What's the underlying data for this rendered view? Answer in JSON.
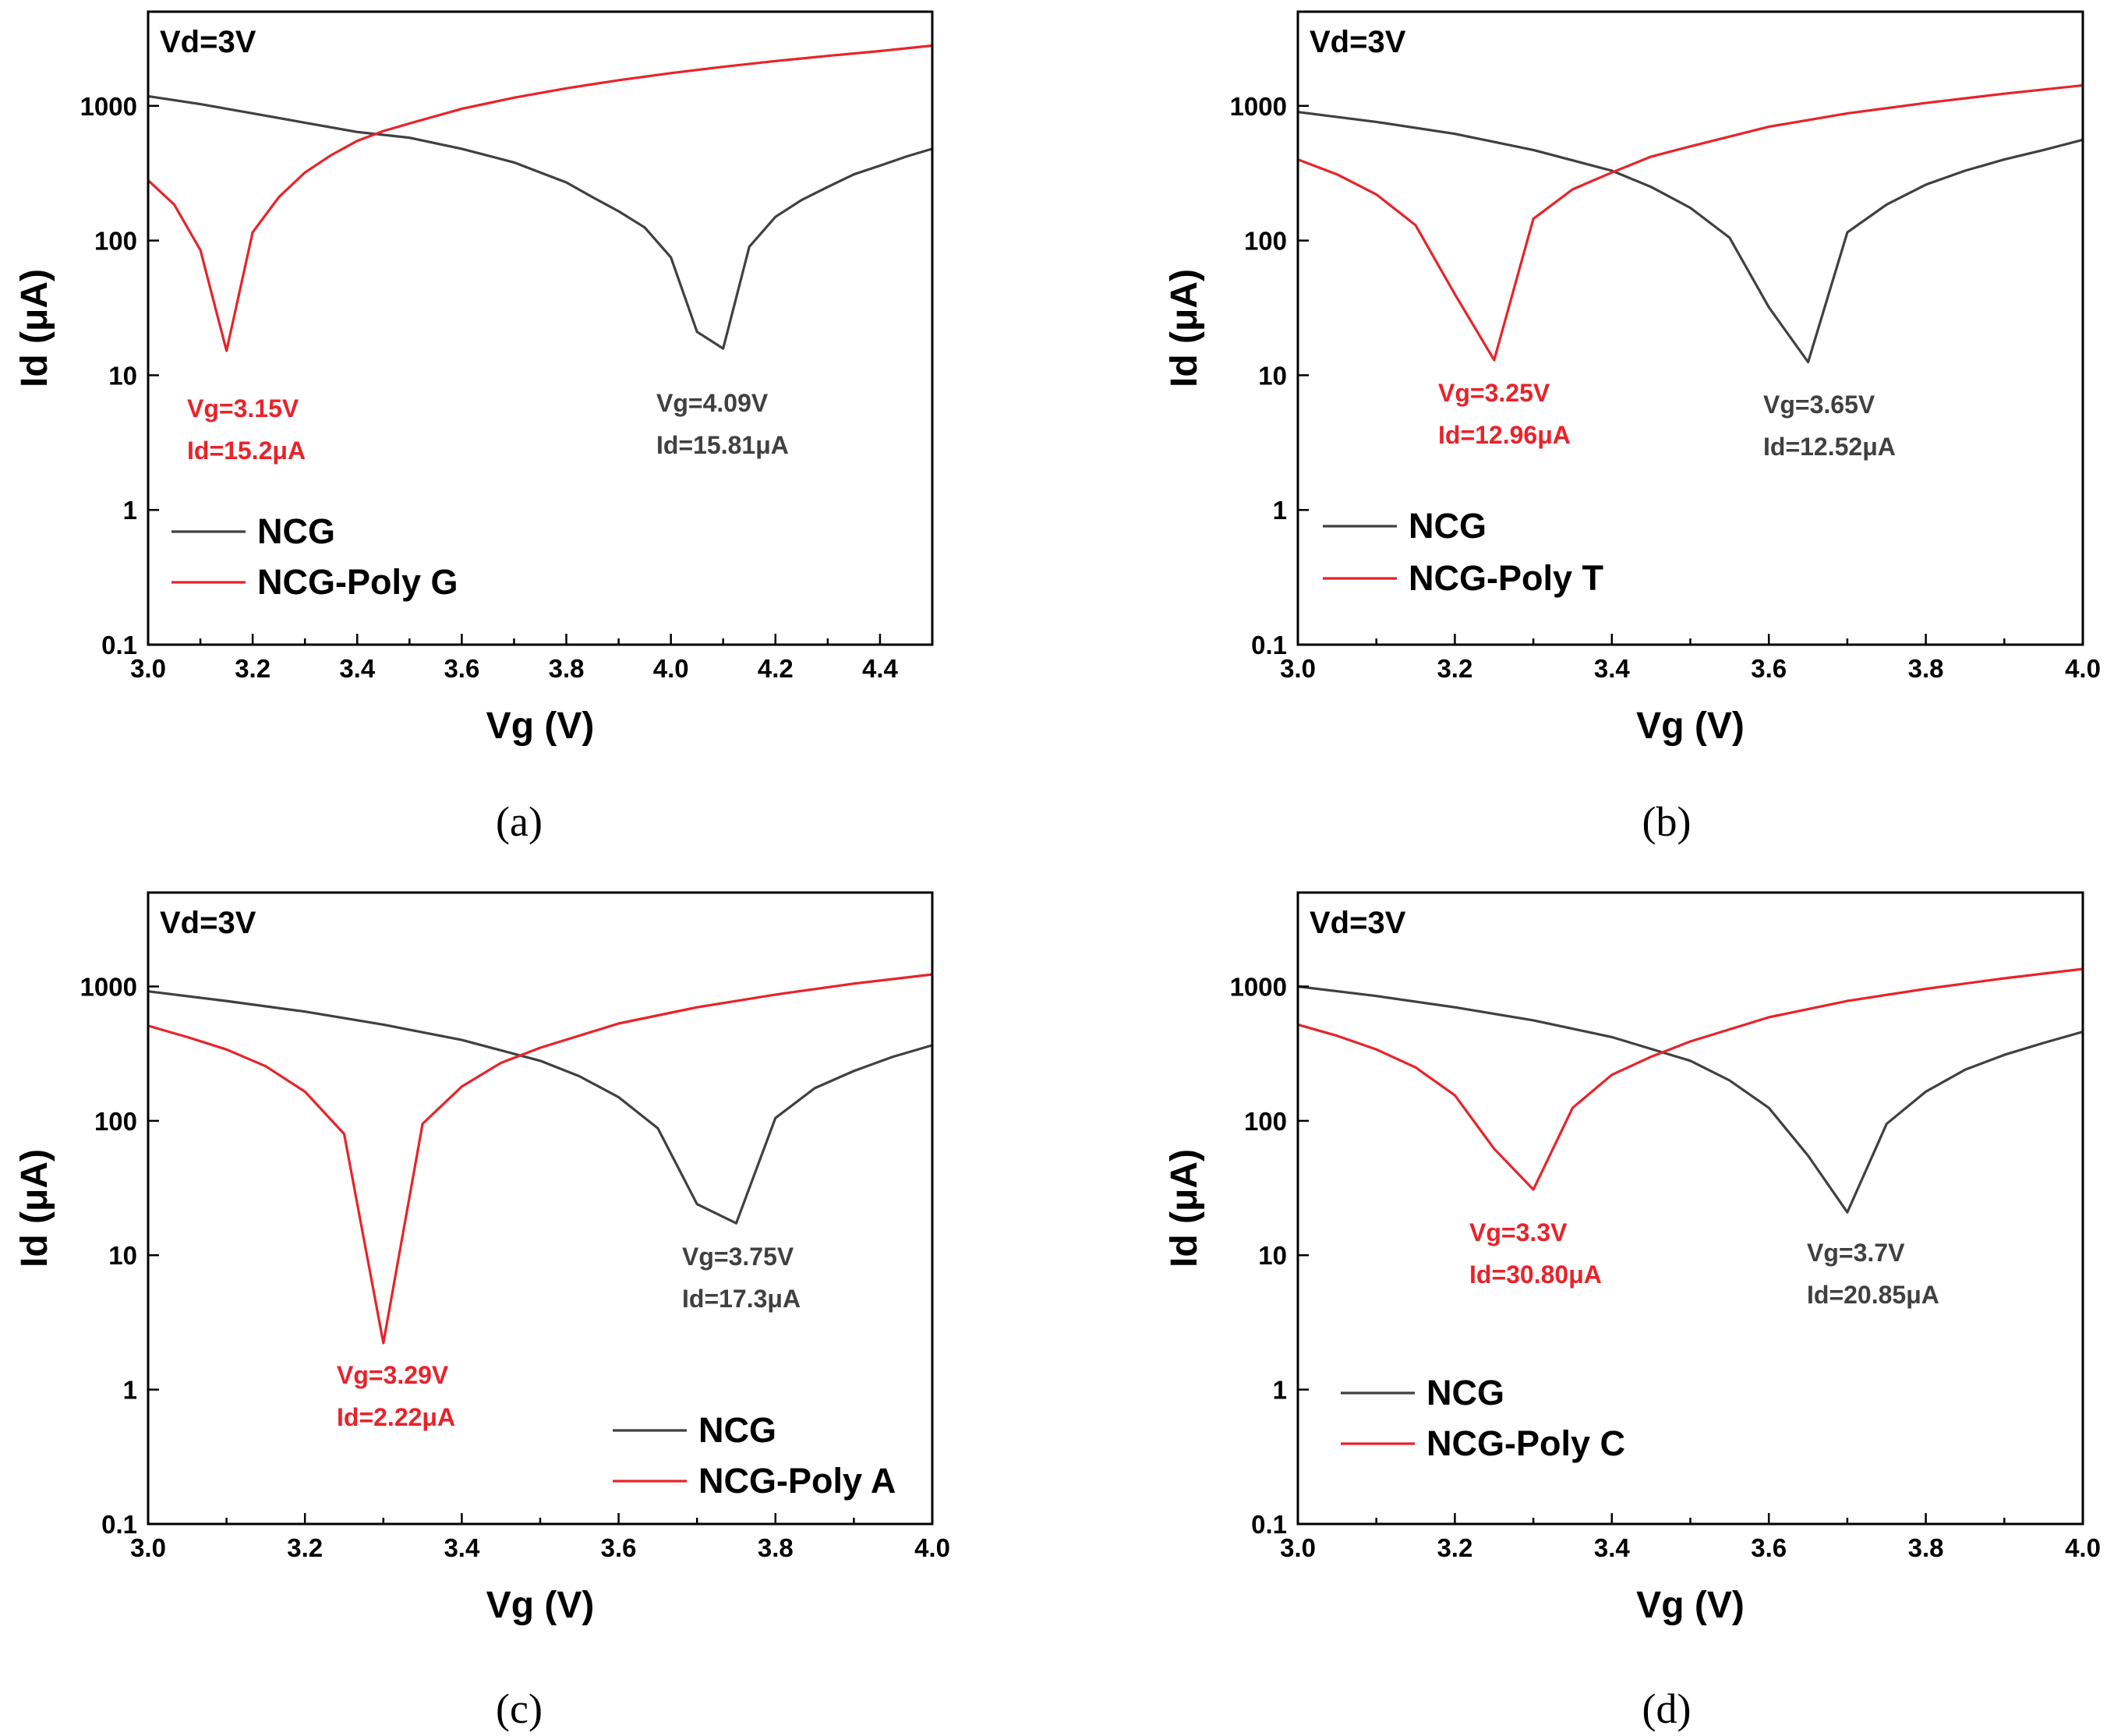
{
  "colors": {
    "ncg": "#404040",
    "poly": "#e8232a",
    "axis": "#000000"
  },
  "chart_data": [
    {
      "type": "line",
      "caption": "(a)",
      "condition": "Vd=3V",
      "xlabel": "Vg (V)",
      "ylabel": "Id (μA)",
      "yscale": "log",
      "xlim": [
        3.0,
        4.5
      ],
      "ylim": [
        0.1,
        5000
      ],
      "xticks": [
        3.0,
        3.2,
        3.4,
        3.6,
        3.8,
        4.0,
        4.2,
        4.4
      ],
      "xtick_labels": [
        "3.0",
        "3.2",
        "3.4",
        "3.6",
        "3.8",
        "4.0",
        "4.2",
        "4.4"
      ],
      "yticks": [
        0.1,
        1,
        10,
        100,
        1000
      ],
      "ytick_labels": [
        "0.1",
        "1",
        "10",
        "100",
        "1000"
      ],
      "legend": [
        "NCG",
        "NCG-Poly G"
      ],
      "series": [
        {
          "name": "NCG",
          "color_key": "ncg",
          "x": [
            3.0,
            3.1,
            3.2,
            3.3,
            3.4,
            3.5,
            3.6,
            3.7,
            3.75,
            3.8,
            3.85,
            3.9,
            3.95,
            4.0,
            4.05,
            4.1,
            4.15,
            4.2,
            4.25,
            4.3,
            4.35,
            4.4,
            4.45,
            4.5
          ],
          "y": [
            1180,
            1030,
            880,
            750,
            640,
            580,
            480,
            380,
            320,
            270,
            210,
            165,
            125,
            75,
            21,
            15.8,
            90,
            150,
            200,
            250,
            310,
            360,
            420,
            480
          ]
        },
        {
          "name": "NCG-Poly G",
          "color_key": "poly",
          "x": [
            3.0,
            3.05,
            3.1,
            3.15,
            3.2,
            3.25,
            3.3,
            3.35,
            3.4,
            3.45,
            3.5,
            3.6,
            3.7,
            3.8,
            3.9,
            4.0,
            4.1,
            4.2,
            4.3,
            4.4,
            4.5
          ],
          "y": [
            280,
            185,
            85,
            15.2,
            115,
            210,
            320,
            430,
            550,
            650,
            740,
            950,
            1150,
            1350,
            1550,
            1750,
            1950,
            2150,
            2350,
            2550,
            2800
          ]
        }
      ],
      "annotations": [
        {
          "series": "NCG-Poly G",
          "color_key": "poly",
          "lines": [
            "Vg=3.15V",
            "Id=15.2μA"
          ]
        },
        {
          "series": "NCG",
          "color_key": "ncg",
          "lines": [
            "Vg=4.09V",
            "Id=15.81μA"
          ]
        }
      ]
    },
    {
      "type": "line",
      "caption": "(b)",
      "condition": "Vd=3V",
      "xlabel": "Vg (V)",
      "ylabel": "Id (μA)",
      "yscale": "log",
      "xlim": [
        3.0,
        4.0
      ],
      "ylim": [
        0.1,
        5000
      ],
      "xticks": [
        3.0,
        3.2,
        3.4,
        3.6,
        3.8,
        4.0
      ],
      "xtick_labels": [
        "3.0",
        "3.2",
        "3.4",
        "3.6",
        "3.8",
        "4.0"
      ],
      "yticks": [
        0.1,
        1,
        10,
        100,
        1000
      ],
      "ytick_labels": [
        "0.1",
        "1",
        "10",
        "100",
        "1000"
      ],
      "legend": [
        "NCG",
        "NCG-Poly T"
      ],
      "series": [
        {
          "name": "NCG",
          "color_key": "ncg",
          "x": [
            3.0,
            3.1,
            3.2,
            3.3,
            3.4,
            3.45,
            3.5,
            3.55,
            3.6,
            3.65,
            3.7,
            3.75,
            3.8,
            3.85,
            3.9,
            3.95,
            4.0
          ],
          "y": [
            900,
            760,
            620,
            470,
            330,
            250,
            175,
            105,
            32,
            12.52,
            115,
            185,
            260,
            330,
            400,
            470,
            560
          ]
        },
        {
          "name": "NCG-Poly T",
          "color_key": "poly",
          "x": [
            3.0,
            3.05,
            3.1,
            3.15,
            3.2,
            3.25,
            3.3,
            3.35,
            3.4,
            3.45,
            3.5,
            3.6,
            3.7,
            3.8,
            3.9,
            4.0
          ],
          "y": [
            400,
            310,
            220,
            130,
            40,
            12.96,
            145,
            240,
            320,
            420,
            500,
            700,
            880,
            1050,
            1230,
            1420
          ]
        }
      ],
      "annotations": [
        {
          "series": "NCG-Poly T",
          "color_key": "poly",
          "lines": [
            "Vg=3.25V",
            "Id=12.96μA"
          ]
        },
        {
          "series": "NCG",
          "color_key": "ncg",
          "lines": [
            "Vg=3.65V",
            "Id=12.52μA"
          ]
        }
      ]
    },
    {
      "type": "line",
      "caption": "(c)",
      "condition": "Vd=3V",
      "xlabel": "Vg (V)",
      "ylabel": "Id (μA)",
      "yscale": "log",
      "xlim": [
        3.0,
        4.0
      ],
      "ylim": [
        0.1,
        5000
      ],
      "xticks": [
        3.0,
        3.2,
        3.4,
        3.6,
        3.8,
        4.0
      ],
      "xtick_labels": [
        "3.0",
        "3.2",
        "3.4",
        "3.6",
        "3.8",
        "4.0"
      ],
      "yticks": [
        0.1,
        1,
        10,
        100,
        1000
      ],
      "ytick_labels": [
        "0.1",
        "1",
        "10",
        "100",
        "1000"
      ],
      "legend": [
        "NCG",
        "NCG-Poly A"
      ],
      "series": [
        {
          "name": "NCG",
          "color_key": "ncg",
          "x": [
            3.0,
            3.1,
            3.2,
            3.3,
            3.4,
            3.5,
            3.55,
            3.6,
            3.65,
            3.7,
            3.75,
            3.8,
            3.85,
            3.9,
            3.95,
            4.0
          ],
          "y": [
            920,
            780,
            650,
            520,
            400,
            280,
            215,
            150,
            88,
            24,
            17.3,
            105,
            175,
            235,
            300,
            365
          ]
        },
        {
          "name": "NCG-Poly A",
          "color_key": "poly",
          "x": [
            3.0,
            3.05,
            3.1,
            3.15,
            3.2,
            3.25,
            3.3,
            3.35,
            3.4,
            3.45,
            3.5,
            3.6,
            3.7,
            3.8,
            3.9,
            4.0
          ],
          "y": [
            510,
            420,
            340,
            255,
            165,
            80,
            2.22,
            95,
            180,
            270,
            350,
            530,
            700,
            870,
            1050,
            1230
          ]
        }
      ],
      "annotations": [
        {
          "series": "NCG-Poly A",
          "color_key": "poly",
          "lines": [
            "Vg=3.29V",
            "Id=2.22μA"
          ]
        },
        {
          "series": "NCG",
          "color_key": "ncg",
          "lines": [
            "Vg=3.75V",
            "Id=17.3μA"
          ]
        }
      ]
    },
    {
      "type": "line",
      "caption": "(d)",
      "condition": "Vd=3V",
      "xlabel": "Vg (V)",
      "ylabel": "Id (μA)",
      "yscale": "log",
      "xlim": [
        3.0,
        4.0
      ],
      "ylim": [
        0.1,
        5000
      ],
      "xticks": [
        3.0,
        3.2,
        3.4,
        3.6,
        3.8,
        4.0
      ],
      "xtick_labels": [
        "3.0",
        "3.2",
        "3.4",
        "3.6",
        "3.8",
        "4.0"
      ],
      "yticks": [
        0.1,
        1,
        10,
        100,
        1000
      ],
      "ytick_labels": [
        "0.1",
        "1",
        "10",
        "100",
        "1000"
      ],
      "legend": [
        "NCG",
        "NCG-Poly C"
      ],
      "series": [
        {
          "name": "NCG",
          "color_key": "ncg",
          "x": [
            3.0,
            3.1,
            3.2,
            3.3,
            3.4,
            3.5,
            3.55,
            3.6,
            3.65,
            3.7,
            3.75,
            3.8,
            3.85,
            3.9,
            3.95,
            4.0
          ],
          "y": [
            1000,
            850,
            700,
            560,
            420,
            280,
            200,
            125,
            55,
            20.85,
            95,
            165,
            240,
            310,
            380,
            460
          ]
        },
        {
          "name": "NCG-Poly C",
          "color_key": "poly",
          "x": [
            3.0,
            3.05,
            3.1,
            3.15,
            3.2,
            3.25,
            3.3,
            3.35,
            3.4,
            3.45,
            3.5,
            3.6,
            3.7,
            3.8,
            3.9,
            4.0
          ],
          "y": [
            520,
            430,
            340,
            250,
            155,
            62,
            30.8,
            125,
            220,
            300,
            390,
            590,
            780,
            960,
            1150,
            1350
          ]
        }
      ],
      "annotations": [
        {
          "series": "NCG-Poly C",
          "color_key": "poly",
          "lines": [
            "Vg=3.3V",
            "Id=30.80μA"
          ]
        },
        {
          "series": "NCG",
          "color_key": "ncg",
          "lines": [
            "Vg=3.7V",
            "Id=20.85μA"
          ]
        }
      ]
    }
  ]
}
